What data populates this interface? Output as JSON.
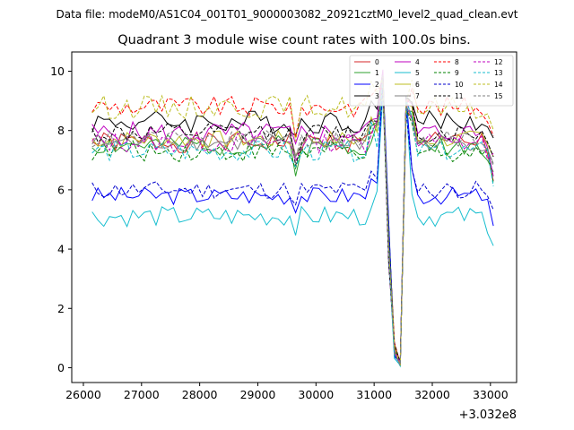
{
  "chart_data": {
    "type": "line",
    "suptitle": "Data file: modeM0/AS1C04_001T01_9000003082_20921cztM0_level2_quad_clean.evt",
    "title": "Quadrant 3 module wise count rates with 100.0s bins.",
    "xlabel": "",
    "ylabel": "",
    "x_offset_label": "+3.032e8",
    "xlim": [
      25800,
      33450
    ],
    "ylim": [
      -0.5,
      10.65
    ],
    "xticks": [
      26000,
      27000,
      28000,
      29000,
      30000,
      31000,
      32000,
      33000
    ],
    "xtick_labels": [
      "26000",
      "27000",
      "28000",
      "29000",
      "30000",
      "31000",
      "32000",
      "33000"
    ],
    "yticks": [
      0,
      2,
      4,
      6,
      8,
      10
    ],
    "ytick_labels": [
      "0",
      "2",
      "4",
      "6",
      "8",
      "10"
    ],
    "legend_position": "top-right",
    "x_start": 26150,
    "x_step": 100,
    "series": [
      {
        "name": "0",
        "color": "#d62728",
        "style": "solid",
        "level": 7.6,
        "amp": 0.35,
        "seed": 1
      },
      {
        "name": "1",
        "color": "#2ca02c",
        "style": "solid",
        "level": 7.5,
        "amp": 0.35,
        "seed": 2
      },
      {
        "name": "2",
        "color": "#0000ff",
        "style": "solid",
        "level": 5.8,
        "amp": 0.3,
        "seed": 3
      },
      {
        "name": "3",
        "color": "#000000",
        "style": "solid",
        "level": 8.3,
        "amp": 0.4,
        "seed": 4
      },
      {
        "name": "4",
        "color": "#bf00bf",
        "style": "solid",
        "level": 7.9,
        "amp": 0.4,
        "seed": 5
      },
      {
        "name": "5",
        "color": "#17becf",
        "style": "solid",
        "level": 5.1,
        "amp": 0.35,
        "seed": 6
      },
      {
        "name": "6",
        "color": "#bcbd22",
        "style": "solid",
        "level": 7.7,
        "amp": 0.3,
        "seed": 7
      },
      {
        "name": "7",
        "color": "#7f7f7f",
        "style": "solid",
        "level": 7.6,
        "amp": 0.3,
        "seed": 8
      },
      {
        "name": "8",
        "color": "#ff0000",
        "style": "dashed",
        "level": 8.8,
        "amp": 0.35,
        "seed": 9
      },
      {
        "name": "9",
        "color": "#008000",
        "style": "dashed",
        "level": 7.3,
        "amp": 0.35,
        "seed": 10
      },
      {
        "name": "10",
        "color": "#0000cc",
        "style": "dashed",
        "level": 6.0,
        "amp": 0.3,
        "seed": 11
      },
      {
        "name": "11",
        "color": "#000000",
        "style": "dashed",
        "level": 7.9,
        "amp": 0.35,
        "seed": 12
      },
      {
        "name": "12",
        "color": "#bf00bf",
        "style": "dashed",
        "level": 7.6,
        "amp": 0.35,
        "seed": 13
      },
      {
        "name": "13",
        "color": "#17becf",
        "style": "dashed",
        "level": 7.3,
        "amp": 0.35,
        "seed": 14
      },
      {
        "name": "14",
        "color": "#bcbd22",
        "style": "dashed",
        "level": 8.8,
        "amp": 0.4,
        "seed": 15
      },
      {
        "name": "15",
        "color": "#7f7f7f",
        "style": "dashed",
        "level": 7.7,
        "amp": 0.3,
        "seed": 16
      }
    ]
  }
}
